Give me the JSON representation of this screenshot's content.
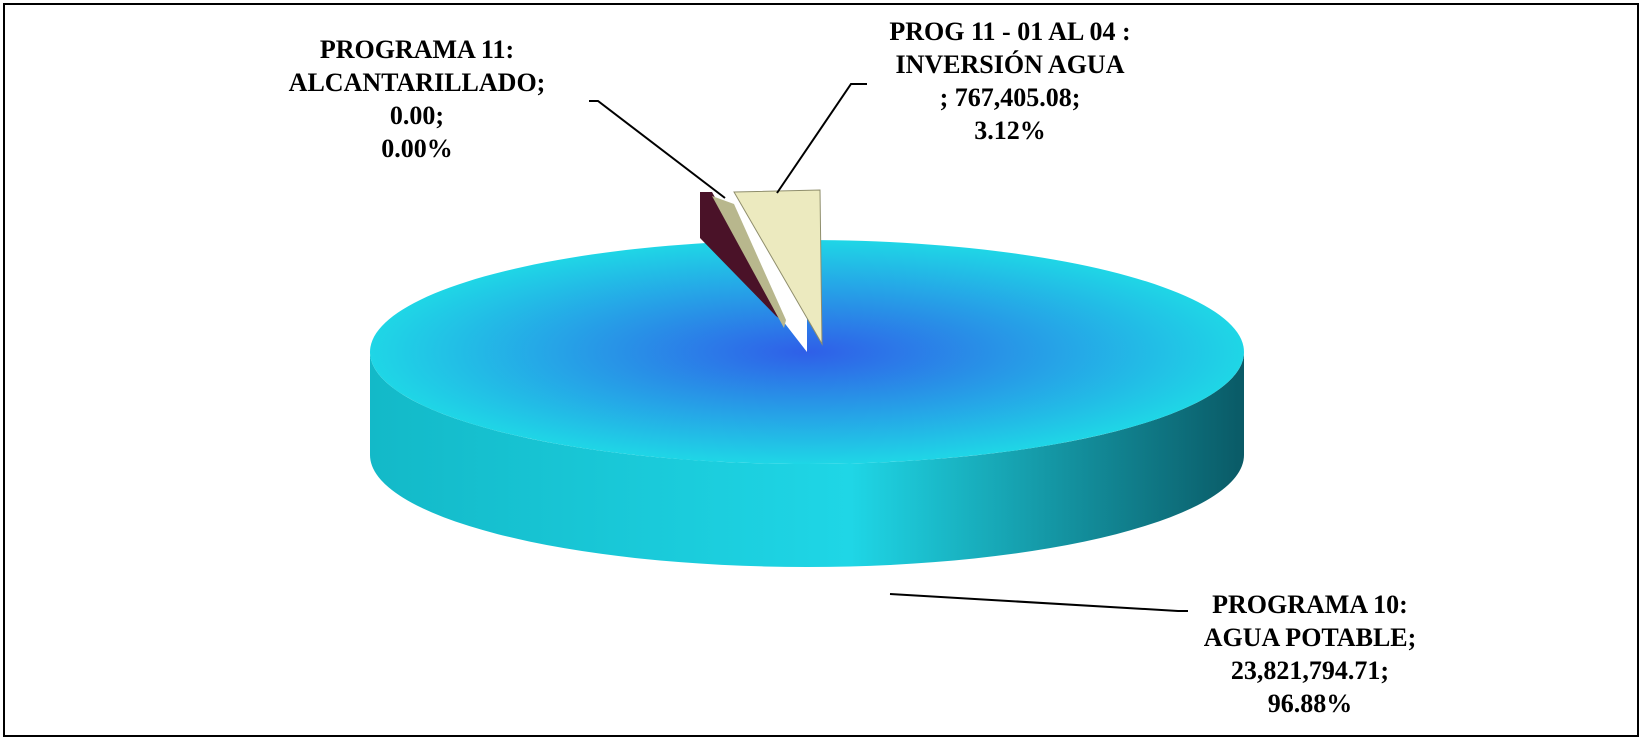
{
  "chart_data": {
    "type": "pie",
    "title": "",
    "slices": [
      {
        "label_line1": "PROGRAMA 10:",
        "label_line2": "AGUA POTABLE;",
        "value_text": "23,821,794.71;",
        "percent_text": "96.88%",
        "value": 23821794.71,
        "percent": 96.88,
        "color": "#1fd6e6",
        "center_color": "#2f5fe8",
        "side_color": "#13b9c8",
        "side_dark_color": "#0a5a66"
      },
      {
        "label_line1": "PROGRAMA 11:",
        "label_line2": "ALCANTARILLADO;",
        "value_text": "0.00;",
        "percent_text": "0.00%",
        "value": 0.0,
        "percent": 0.0,
        "color": "#4a1228"
      },
      {
        "label_line1": "PROG 11 - 01 AL 04 :",
        "label_line2": "INVERSIÓN AGUA",
        "value_text": "; 767,405.08;",
        "percent_text": "3.12%",
        "value": 767405.08,
        "percent": 3.12,
        "color": "#eceabf",
        "side_color": "#b8b78d"
      }
    ],
    "exploded": [
      "INVERSIÓN AGUA",
      "ALCANTARILLADO"
    ],
    "style": "3d-exploded",
    "legend": "none"
  }
}
